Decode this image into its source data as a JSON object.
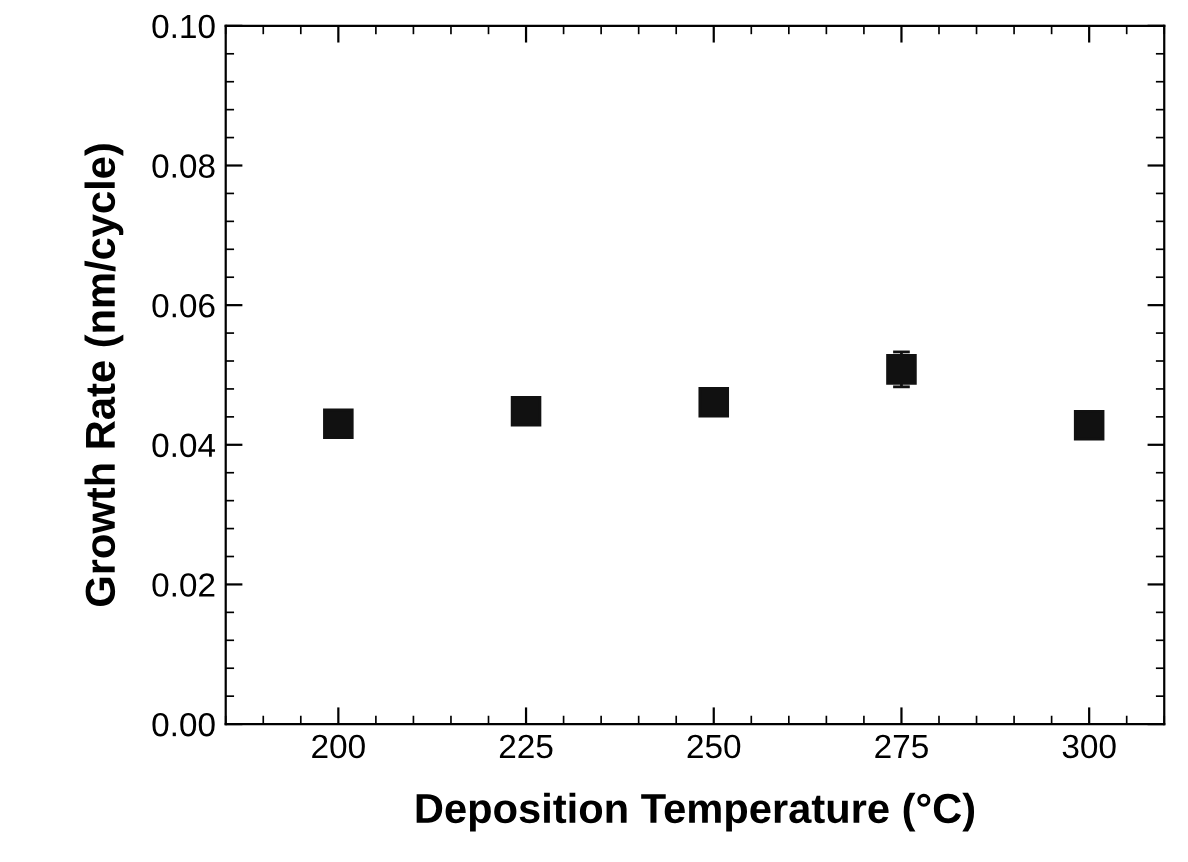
{
  "chart_data": {
    "type": "scatter",
    "xlabel": "Deposition Temperature (°C)",
    "ylabel": "Growth Rate (nm/cycle)",
    "x": [
      200,
      225,
      250,
      275,
      300
    ],
    "series": [
      {
        "color": "#111111",
        "values": [
          0.043,
          0.0448,
          0.0461,
          0.0508,
          0.0428
        ],
        "errors": [
          0.0015,
          0.001,
          0.0015,
          0.0025,
          0.001
        ]
      }
    ],
    "xlim": [
      185,
      310
    ],
    "xticks": [
      200,
      225,
      250,
      275,
      300
    ],
    "ylim": [
      0,
      0.1
    ],
    "yticks": [
      {
        "value": 0,
        "label": "0.00"
      },
      {
        "value": 0.02,
        "label": "0.02"
      },
      {
        "value": 0.04,
        "label": "0.04"
      },
      {
        "value": 0.06,
        "label": "0.06"
      },
      {
        "value": 0.08,
        "label": "0.08"
      },
      {
        "value": 0.1,
        "label": "0.10"
      }
    ],
    "marker": "square",
    "grid": false,
    "legend": false
  }
}
